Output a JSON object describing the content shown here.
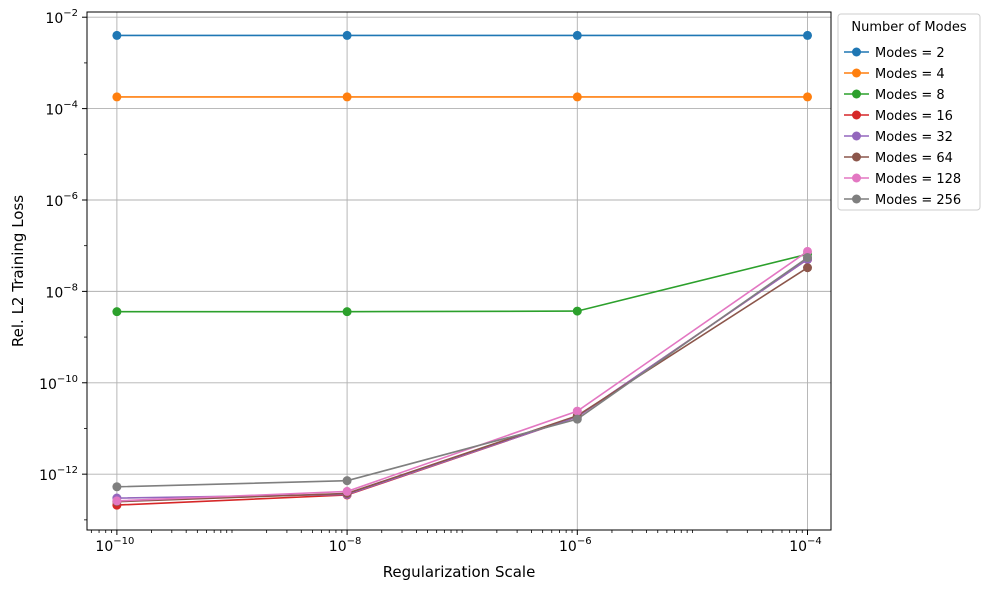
{
  "chart_data": {
    "type": "line",
    "title": "",
    "xlabel": "Regularization Scale",
    "ylabel": "Rel. L2 Training Loss",
    "x_scale": "log",
    "y_scale": "log",
    "x": [
      1e-10,
      1e-08,
      1e-06,
      0.0001
    ],
    "x_ticks": [
      {
        "value": 1e-10,
        "base": "10",
        "exp": "−10"
      },
      {
        "value": 1e-08,
        "base": "10",
        "exp": "−8"
      },
      {
        "value": 1e-06,
        "base": "10",
        "exp": "−6"
      },
      {
        "value": 0.0001,
        "base": "10",
        "exp": "−4"
      }
    ],
    "y_ticks": [
      {
        "value": 1e-12,
        "base": "10",
        "exp": "−12"
      },
      {
        "value": 1e-10,
        "base": "10",
        "exp": "−10"
      },
      {
        "value": 1e-08,
        "base": "10",
        "exp": "−8"
      },
      {
        "value": 1e-06,
        "base": "10",
        "exp": "−6"
      },
      {
        "value": 0.0001,
        "base": "10",
        "exp": "−4"
      },
      {
        "value": 0.01,
        "base": "10",
        "exp": "−2"
      }
    ],
    "xlim": [
      5.5e-11,
      0.00016
    ],
    "ylim": [
      6e-14,
      0.013
    ],
    "grid": true,
    "legend": {
      "title": "Number of Modes",
      "placement": "outside-top-right"
    },
    "series": [
      {
        "name": "Modes = 2",
        "color": "#1f77b4",
        "values": [
          0.004,
          0.004,
          0.004,
          0.004
        ]
      },
      {
        "name": "Modes = 4",
        "color": "#ff7f0e",
        "values": [
          0.00018,
          0.00018,
          0.00018,
          0.00018
        ]
      },
      {
        "name": "Modes = 8",
        "color": "#2ca02c",
        "values": [
          3.6e-09,
          3.6e-09,
          3.7e-09,
          6.5e-08
        ]
      },
      {
        "name": "Modes = 16",
        "color": "#d62728",
        "values": [
          2.1e-13,
          3.5e-13,
          1.8e-11,
          5e-08
        ]
      },
      {
        "name": "Modes = 32",
        "color": "#9467bd",
        "values": [
          3e-13,
          3.6e-13,
          1.8e-11,
          5e-08
        ]
      },
      {
        "name": "Modes = 64",
        "color": "#8c564b",
        "values": [
          2.5e-13,
          3.8e-13,
          1.9e-11,
          3.3e-08
        ]
      },
      {
        "name": "Modes = 128",
        "color": "#e377c2",
        "values": [
          2.6e-13,
          4.2e-13,
          2.4e-11,
          7.5e-08
        ]
      },
      {
        "name": "Modes = 256",
        "color": "#7f7f7f",
        "values": [
          5.3e-13,
          7.2e-13,
          1.6e-11,
          5.5e-08
        ]
      }
    ]
  }
}
